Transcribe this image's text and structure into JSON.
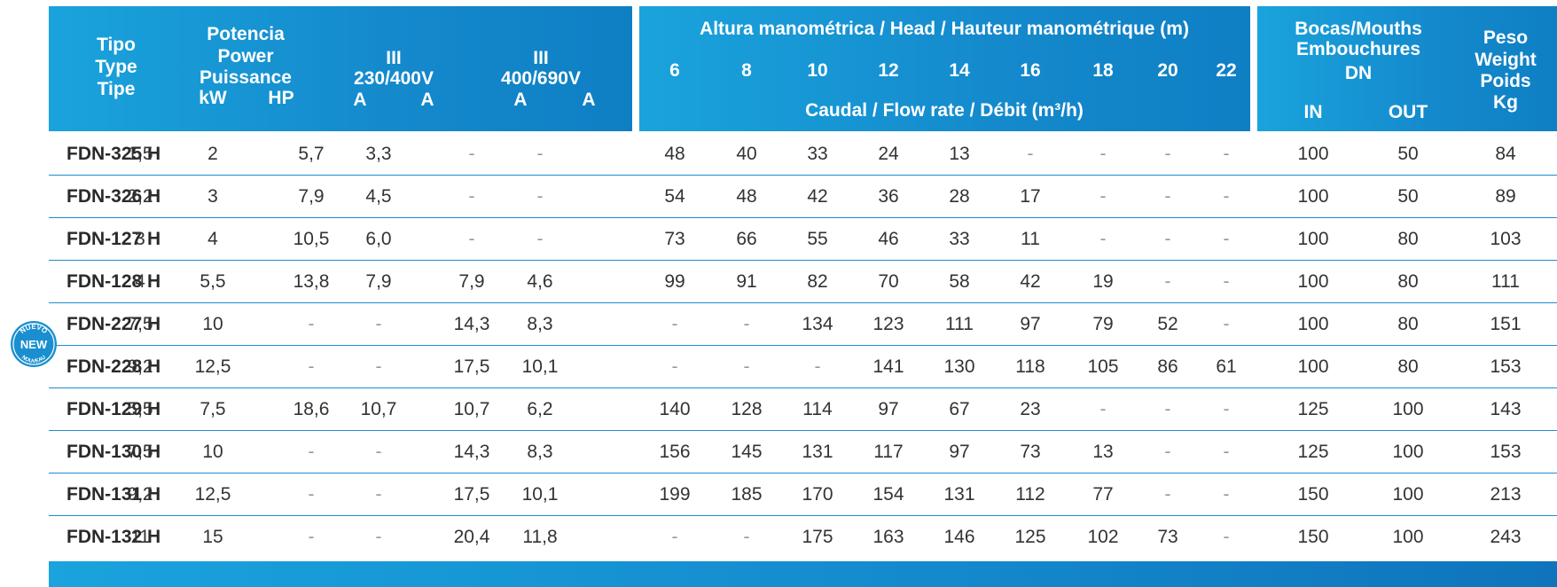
{
  "header": {
    "tipo": [
      "Tipo",
      "Type",
      "Tipe"
    ],
    "potencia": [
      "Potencia",
      "Power",
      "Puissance"
    ],
    "kw": "kW",
    "hp": "HP",
    "v230_phase": "III",
    "v230": "230/400V",
    "v400_phase": "III",
    "v400": "400/690V",
    "amp": "A",
    "altura": "Altura manométrica / Head / Hauteur manométrique (m)",
    "heads": [
      "6",
      "8",
      "10",
      "12",
      "14",
      "16",
      "18",
      "20",
      "22"
    ],
    "caudal": "Caudal / Flow rate / Débit (m³/h)",
    "bocas": [
      "Bocas/Mouths",
      "Embouchures",
      "DN"
    ],
    "in": "IN",
    "out": "OUT",
    "peso": [
      "Peso",
      "Weight",
      "Poids",
      "Kg"
    ]
  },
  "badge": {
    "top": "NUEVO",
    "middle": "NEW",
    "bottom": "NOUVEAU",
    "color": "#1a8fd0"
  },
  "rows": [
    {
      "model": "FDN-325 H",
      "kw": "1,5",
      "hp": "2",
      "a230": "5,7",
      "a400": "3,3",
      "b400": "-",
      "b690": "-",
      "h": [
        "48",
        "40",
        "33",
        "24",
        "13",
        "-",
        "-",
        "-",
        "-"
      ],
      "in": "100",
      "out": "50",
      "kg": "84"
    },
    {
      "model": "FDN-326 H",
      "kw": "2,2",
      "hp": "3",
      "a230": "7,9",
      "a400": "4,5",
      "b400": "-",
      "b690": "-",
      "h": [
        "54",
        "48",
        "42",
        "36",
        "28",
        "17",
        "-",
        "-",
        "-"
      ],
      "in": "100",
      "out": "50",
      "kg": "89"
    },
    {
      "model": "FDN-127 H",
      "kw": "3",
      "hp": "4",
      "a230": "10,5",
      "a400": "6,0",
      "b400": "-",
      "b690": "-",
      "h": [
        "73",
        "66",
        "55",
        "46",
        "33",
        "11",
        "-",
        "-",
        "-"
      ],
      "in": "100",
      "out": "80",
      "kg": "103"
    },
    {
      "model": "FDN-128 H",
      "kw": "4",
      "hp": "5,5",
      "a230": "13,8",
      "a400": "7,9",
      "b400": "7,9",
      "b690": "4,6",
      "h": [
        "99",
        "91",
        "82",
        "70",
        "58",
        "42",
        "19",
        "-",
        "-"
      ],
      "in": "100",
      "out": "80",
      "kg": "111"
    },
    {
      "model": "FDN-227 H",
      "kw": "7,5",
      "hp": "10",
      "a230": "-",
      "a400": "-",
      "b400": "14,3",
      "b690": "8,3",
      "h": [
        "-",
        "-",
        "134",
        "123",
        "111",
        "97",
        "79",
        "52",
        "-"
      ],
      "in": "100",
      "out": "80",
      "kg": "151"
    },
    {
      "model": "FDN-228 H",
      "kw": "9,2",
      "hp": "12,5",
      "a230": "-",
      "a400": "-",
      "b400": "17,5",
      "b690": "10,1",
      "h": [
        "-",
        "-",
        "-",
        "141",
        "130",
        "118",
        "105",
        "86",
        "61"
      ],
      "in": "100",
      "out": "80",
      "kg": "153"
    },
    {
      "model": "FDN-129 H",
      "kw": "5,5",
      "hp": "7,5",
      "a230": "18,6",
      "a400": "10,7",
      "b400": "10,7",
      "b690": "6,2",
      "h": [
        "140",
        "128",
        "114",
        "97",
        "67",
        "23",
        "-",
        "-",
        "-"
      ],
      "in": "125",
      "out": "100",
      "kg": "143"
    },
    {
      "model": "FDN-130 H",
      "kw": "7,5",
      "hp": "10",
      "a230": "-",
      "a400": "-",
      "b400": "14,3",
      "b690": "8,3",
      "h": [
        "156",
        "145",
        "131",
        "117",
        "97",
        "73",
        "13",
        "-",
        "-"
      ],
      "in": "125",
      "out": "100",
      "kg": "153"
    },
    {
      "model": "FDN-131 H",
      "kw": "9,2",
      "hp": "12,5",
      "a230": "-",
      "a400": "-",
      "b400": "17,5",
      "b690": "10,1",
      "h": [
        "199",
        "185",
        "170",
        "154",
        "131",
        "112",
        "77",
        "-",
        "-"
      ],
      "in": "150",
      "out": "100",
      "kg": "213"
    },
    {
      "model": "FDN-132 H",
      "kw": "11",
      "hp": "15",
      "a230": "-",
      "a400": "-",
      "b400": "20,4",
      "b690": "11,8",
      "h": [
        "-",
        "-",
        "175",
        "163",
        "146",
        "125",
        "102",
        "73",
        "-"
      ],
      "in": "150",
      "out": "100",
      "kg": "243"
    }
  ]
}
